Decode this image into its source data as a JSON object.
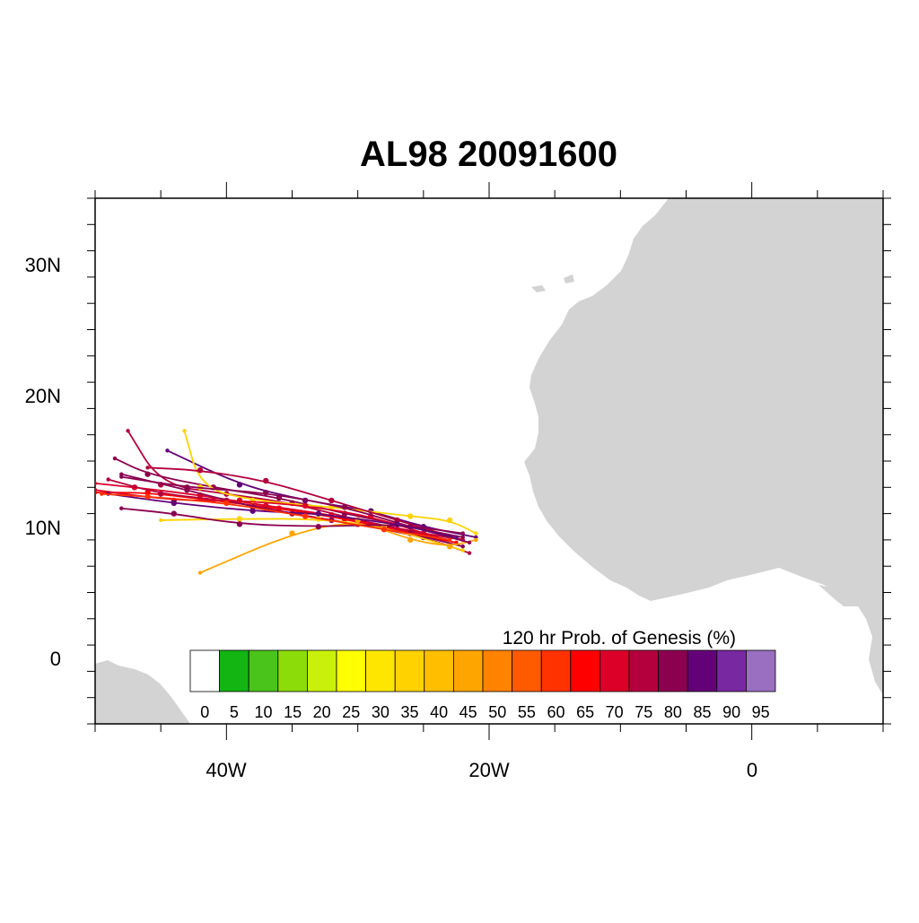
{
  "title": "AL98 20091600",
  "axes": {
    "lat_labels": [
      "30N",
      "20N",
      "10N",
      "0"
    ],
    "lon_labels": [
      "40W",
      "20W",
      "0"
    ]
  },
  "legend": {
    "title": "120 hr Prob. of Genesis (%)",
    "levels": [
      "0",
      "5",
      "10",
      "15",
      "20",
      "25",
      "30",
      "35",
      "40",
      "45",
      "50",
      "55",
      "60",
      "65",
      "70",
      "75",
      "80",
      "85",
      "90",
      "95"
    ],
    "colors": [
      "#ffffff",
      "#12b512",
      "#4ac41a",
      "#8cdc0a",
      "#c8f00a",
      "#ffff00",
      "#ffe600",
      "#ffd200",
      "#ffbe00",
      "#ffa500",
      "#ff8200",
      "#ff5a00",
      "#ff3200",
      "#ff0000",
      "#dc0028",
      "#b4003c",
      "#8c0050",
      "#640078",
      "#7828a0",
      "#9a6ec0"
    ]
  },
  "colors": {
    "land": "#d3d3d3",
    "ocean": "#ffffff"
  },
  "map_extent": {
    "lon": [
      -50,
      10
    ],
    "lat": [
      -5,
      35
    ]
  },
  "chart_data": {
    "type": "scatter",
    "x_units": "degrees longitude (negative = W)",
    "y_units": "degrees latitude",
    "series": [
      {
        "color": "#b4003c",
        "points": [
          [
            -22,
            9.0
          ],
          [
            -25,
            9.5
          ],
          [
            -30,
            10.5
          ],
          [
            -35,
            11.8
          ],
          [
            -40,
            12.5
          ],
          [
            -45,
            13.2
          ],
          [
            -47.5,
            17.3
          ]
        ]
      },
      {
        "color": "#8c0050",
        "points": [
          [
            -22,
            9.2
          ],
          [
            -26,
            10.0
          ],
          [
            -31,
            11.0
          ],
          [
            -36,
            12.2
          ],
          [
            -41,
            13.0
          ],
          [
            -46,
            14.0
          ],
          [
            -48.5,
            15.2
          ]
        ]
      },
      {
        "color": "#ff0000",
        "points": [
          [
            -22.5,
            8.8
          ],
          [
            -26,
            9.5
          ],
          [
            -31,
            10.6
          ],
          [
            -36,
            11.4
          ],
          [
            -41,
            12.0
          ],
          [
            -46,
            12.6
          ],
          [
            -50,
            12.6
          ]
        ]
      },
      {
        "color": "#dc0028",
        "points": [
          [
            -23,
            9.0
          ],
          [
            -27,
            9.8
          ],
          [
            -32,
            10.9
          ],
          [
            -37,
            11.6
          ],
          [
            -42,
            12.4
          ],
          [
            -47,
            13.0
          ],
          [
            -50,
            13.3
          ]
        ]
      },
      {
        "color": "#640078",
        "points": [
          [
            -21,
            9.2
          ],
          [
            -25,
            10.0
          ],
          [
            -29,
            11.2
          ],
          [
            -34,
            12.0
          ],
          [
            -39,
            13.2
          ],
          [
            -44.5,
            15.8
          ]
        ]
      },
      {
        "color": "#b4003c",
        "points": [
          [
            -21.5,
            8.0
          ],
          [
            -25,
            9.2
          ],
          [
            -30,
            10.2
          ],
          [
            -35,
            11.0
          ],
          [
            -40,
            12.0
          ],
          [
            -45,
            12.5
          ],
          [
            -49,
            13.6
          ]
        ]
      },
      {
        "color": "#8c0050",
        "points": [
          [
            -22,
            8.5
          ],
          [
            -26,
            9.5
          ],
          [
            -32,
            10.5
          ],
          [
            -38,
            11.5
          ],
          [
            -43,
            12.8
          ],
          [
            -48,
            14.0
          ]
        ]
      },
      {
        "color": "#ffd200",
        "points": [
          [
            -22,
            8.2
          ],
          [
            -28,
            10.0
          ],
          [
            -33,
            10.6
          ],
          [
            -39,
            10.6
          ],
          [
            -45,
            10.5
          ]
        ]
      },
      {
        "color": "#ffd200",
        "points": [
          [
            -21,
            9.5
          ],
          [
            -23,
            10.5
          ],
          [
            -26,
            10.8
          ],
          [
            -32,
            11.5
          ],
          [
            -38,
            12.0
          ],
          [
            -42,
            13.0
          ],
          [
            -43.2,
            17.3
          ]
        ]
      },
      {
        "color": "#ffa500",
        "points": [
          [
            -21,
            9.0
          ],
          [
            -23,
            8.5
          ],
          [
            -26,
            9.0
          ],
          [
            -30,
            10.5
          ],
          [
            -35,
            9.5
          ],
          [
            -42,
            6.5
          ]
        ]
      },
      {
        "color": "#b4003c",
        "points": [
          [
            -22,
            9.0
          ],
          [
            -27,
            10.5
          ],
          [
            -32,
            12.0
          ],
          [
            -37,
            13.5
          ],
          [
            -42,
            14.3
          ],
          [
            -46,
            14.5
          ]
        ]
      },
      {
        "color": "#8c0050",
        "points": [
          [
            -22,
            9.5
          ],
          [
            -27,
            10.2
          ],
          [
            -33,
            10.0
          ],
          [
            -39,
            10.2
          ],
          [
            -44,
            11.0
          ],
          [
            -48,
            11.4
          ]
        ]
      },
      {
        "color": "#dc0028",
        "points": [
          [
            -24,
            9.2
          ],
          [
            -29,
            10.8
          ],
          [
            -34,
            11.6
          ],
          [
            -39,
            12.0
          ],
          [
            -44,
            12.0
          ],
          [
            -50,
            12.8
          ]
        ]
      },
      {
        "color": "#8c0050",
        "points": [
          [
            -21.5,
            8.8
          ],
          [
            -26,
            10.0
          ],
          [
            -31,
            11.5
          ],
          [
            -37,
            12.6
          ],
          [
            -43,
            13.0
          ],
          [
            -48,
            13.8
          ]
        ]
      },
      {
        "color": "#640078",
        "points": [
          [
            -22.5,
            9.2
          ],
          [
            -27,
            10.2
          ],
          [
            -33,
            11.0
          ],
          [
            -38,
            11.2
          ],
          [
            -44,
            11.8
          ],
          [
            -49,
            12.5
          ]
        ]
      },
      {
        "color": "#ff3200",
        "points": [
          [
            -23,
            9.0
          ],
          [
            -28,
            9.8
          ],
          [
            -34,
            10.8
          ],
          [
            -40,
            11.8
          ],
          [
            -46,
            12.3
          ],
          [
            -49.5,
            12.5
          ]
        ]
      }
    ]
  }
}
